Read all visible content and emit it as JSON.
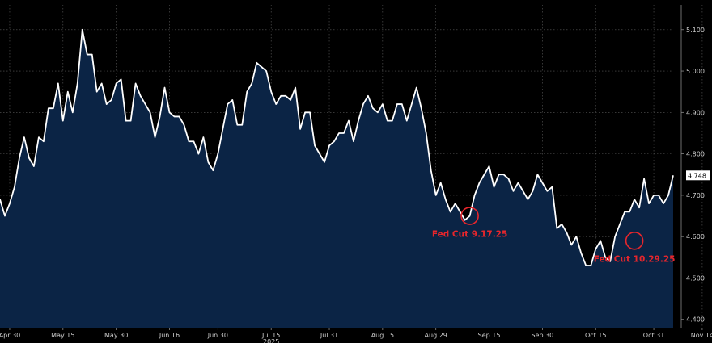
{
  "chart_data": {
    "type": "area",
    "title": "",
    "xlabel": "2025",
    "ylabel": "",
    "ylim": [
      4.38,
      5.16
    ],
    "grid": true,
    "y_axis_side": "right",
    "colors": {
      "background": "#000000",
      "fill": "#0b2445",
      "line": "#ffffff",
      "grid": "#5a5a5a",
      "annotation": "#e8262c",
      "last_label_bg": "#ffffff"
    },
    "y_ticks": [
      {
        "value": 4.4,
        "label": "4.400"
      },
      {
        "value": 4.5,
        "label": "4.500"
      },
      {
        "value": 4.6,
        "label": "4.600"
      },
      {
        "value": 4.7,
        "label": "4.700"
      },
      {
        "value": 4.8,
        "label": "4.800"
      },
      {
        "value": 4.9,
        "label": "4.900"
      },
      {
        "value": 5.0,
        "label": "5.000"
      },
      {
        "value": 5.1,
        "label": "5.100"
      }
    ],
    "x_ticks": [
      {
        "index": 2,
        "label": "Apr 30"
      },
      {
        "index": 13,
        "label": "May 15"
      },
      {
        "index": 24,
        "label": "May 30"
      },
      {
        "index": 35,
        "label": "Jun 16"
      },
      {
        "index": 45,
        "label": "Jun 30"
      },
      {
        "index": 56,
        "label": "Jul 15"
      },
      {
        "index": 68,
        "label": "Jul 31"
      },
      {
        "index": 79,
        "label": "Aug 15"
      },
      {
        "index": 90,
        "label": "Aug 29"
      },
      {
        "index": 101,
        "label": "Sep 15"
      },
      {
        "index": 112,
        "label": "Sep 30"
      },
      {
        "index": 123,
        "label": "Oct 15"
      },
      {
        "index": 135,
        "label": "Oct 31"
      },
      {
        "index": 145,
        "label": "Nov 14"
      }
    ],
    "series": [
      {
        "values": [
          4.69,
          4.65,
          4.68,
          4.72,
          4.79,
          4.84,
          4.79,
          4.77,
          4.84,
          4.83,
          4.91,
          4.91,
          4.97,
          4.88,
          4.95,
          4.9,
          4.97,
          5.1,
          5.04,
          5.04,
          4.95,
          4.97,
          4.92,
          4.93,
          4.97,
          4.98,
          4.88,
          4.88,
          4.97,
          4.94,
          4.92,
          4.9,
          4.84,
          4.89,
          4.96,
          4.9,
          4.89,
          4.89,
          4.87,
          4.83,
          4.83,
          4.8,
          4.84,
          4.78,
          4.76,
          4.8,
          4.86,
          4.92,
          4.93,
          4.87,
          4.87,
          4.95,
          4.97,
          5.02,
          5.01,
          5.0,
          4.95,
          4.92,
          4.94,
          4.94,
          4.93,
          4.96,
          4.86,
          4.9,
          4.9,
          4.82,
          4.8,
          4.78,
          4.82,
          4.83,
          4.85,
          4.85,
          4.88,
          4.83,
          4.88,
          4.92,
          4.94,
          4.91,
          4.9,
          4.92,
          4.88,
          4.88,
          4.92,
          4.92,
          4.88,
          4.92,
          4.96,
          4.91,
          4.85,
          4.76,
          4.7,
          4.73,
          4.69,
          4.66,
          4.68,
          4.66,
          4.64,
          4.65,
          4.7,
          4.73,
          4.75,
          4.77,
          4.72,
          4.75,
          4.75,
          4.74,
          4.71,
          4.73,
          4.71,
          4.69,
          4.71,
          4.75,
          4.73,
          4.71,
          4.72,
          4.62,
          4.63,
          4.61,
          4.58,
          4.6,
          4.56,
          4.53,
          4.53,
          4.57,
          4.59,
          4.55,
          4.54,
          4.6,
          4.63,
          4.66,
          4.66,
          4.69,
          4.67,
          4.74,
          4.68,
          4.7,
          4.7,
          4.68,
          4.7,
          4.748
        ]
      }
    ],
    "last_value_label": "4.748",
    "annotations": [
      {
        "text": "Fed Cut 9.17.25",
        "index": 97,
        "value": 4.65
      },
      {
        "text": "Fed Cut 10.29.25",
        "index": 131,
        "value": 4.59
      }
    ]
  }
}
